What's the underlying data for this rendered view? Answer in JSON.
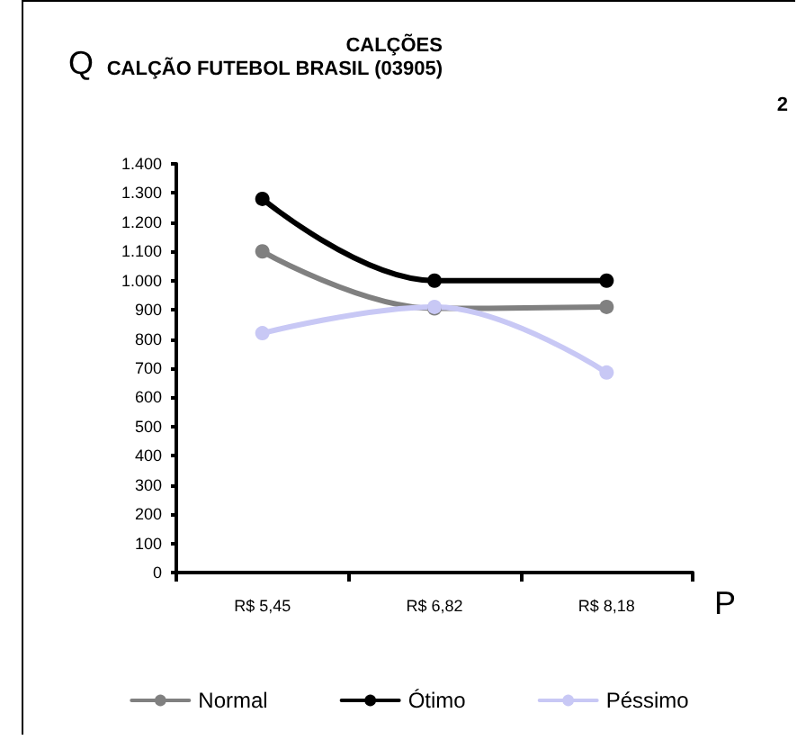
{
  "chart_data": {
    "type": "line",
    "title": "CALÇÕES",
    "subtitle": "CALÇÃO FUTEBOL BRASIL (03905)",
    "annotations": [
      "2"
    ],
    "xlabel": "P",
    "ylabel": "Q",
    "categories": [
      "R$ 5,45",
      "R$ 6,82",
      "R$ 8,18"
    ],
    "series": [
      {
        "name": "Normal",
        "color": "#808080",
        "values": [
          1100,
          905,
          910
        ]
      },
      {
        "name": "Ótimo",
        "color": "#000000",
        "values": [
          1280,
          1000,
          1000
        ]
      },
      {
        "name": "Péssimo",
        "color": "#c8c8f5",
        "values": [
          820,
          910,
          685
        ]
      }
    ],
    "ylim": [
      0,
      1400
    ],
    "yticks": [
      0,
      100,
      200,
      300,
      400,
      500,
      600,
      700,
      800,
      900,
      {
        "value": 1000,
        "label": "1.000"
      },
      {
        "value": 1100,
        "label": "1.100"
      },
      {
        "value": 1200,
        "label": "1.200"
      },
      {
        "value": 1300,
        "label": "1.300"
      },
      {
        "value": 1400,
        "label": "1.400"
      }
    ],
    "grid": false,
    "legend": "bottom",
    "marker": "circle",
    "line_style": "solid"
  }
}
